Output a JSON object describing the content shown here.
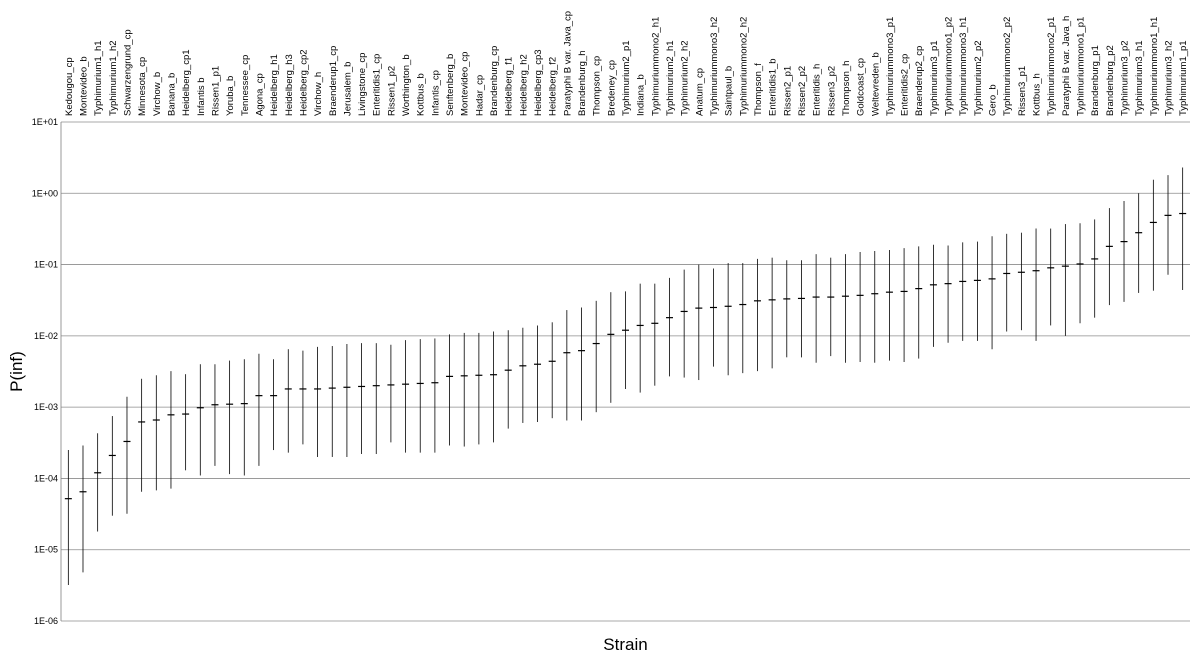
{
  "chart_data": {
    "type": "scatter",
    "xlabel": "Strain",
    "ylabel": "P(inf)",
    "yscale": "log",
    "ylim": [
      1e-06,
      10
    ],
    "yticks": [
      1e-06,
      1e-05,
      0.0001,
      0.001,
      0.01,
      0.1,
      1,
      10
    ],
    "ytick_labels": [
      "1E-06",
      "1E-05",
      "1E-04",
      "1E-03",
      "1E-02",
      "1E-01",
      "1E+00",
      "1E+01"
    ],
    "grid": "horizontal",
    "legend": "none",
    "marker": "horizontal dash with vertical error bar",
    "colors": {
      "line": "#000000",
      "grid": "#8c8c8c",
      "axis": "#808080"
    },
    "points": [
      {
        "strain": "Kedougou_cp",
        "estimate": 5.2e-05,
        "lower": 3.2e-06,
        "upper": 0.00025
      },
      {
        "strain": "Montevideo_b",
        "estimate": 6.5e-05,
        "lower": 4.8e-06,
        "upper": 0.00029
      },
      {
        "strain": "Typhimurium1_h1",
        "estimate": 0.00012,
        "lower": 1.8e-05,
        "upper": 0.00043
      },
      {
        "strain": "Typhimurium1_h2",
        "estimate": 0.00021,
        "lower": 3e-05,
        "upper": 0.00075
      },
      {
        "strain": "Schwarzengrund_cp",
        "estimate": 0.00033,
        "lower": 3.2e-05,
        "upper": 0.0014
      },
      {
        "strain": "Minnesota_cp",
        "estimate": 0.00062,
        "lower": 6.5e-05,
        "upper": 0.0025
      },
      {
        "strain": "Virchow_b",
        "estimate": 0.00066,
        "lower": 6.8e-05,
        "upper": 0.0028
      },
      {
        "strain": "Banana_b",
        "estimate": 0.00078,
        "lower": 7.2e-05,
        "upper": 0.0032
      },
      {
        "strain": "Heidelberg_cp1",
        "estimate": 0.0008,
        "lower": 0.00013,
        "upper": 0.0029
      },
      {
        "strain": "Infantis b",
        "estimate": 0.00098,
        "lower": 0.00011,
        "upper": 0.004
      },
      {
        "strain": "Rissen1_p1",
        "estimate": 0.00108,
        "lower": 0.00015,
        "upper": 0.004
      },
      {
        "strain": "Yoruba_b",
        "estimate": 0.0011,
        "lower": 0.000115,
        "upper": 0.0045
      },
      {
        "strain": "Tennessee_cp",
        "estimate": 0.00112,
        "lower": 0.00011,
        "upper": 0.0047
      },
      {
        "strain": "Agona_cp",
        "estimate": 0.00145,
        "lower": 0.00015,
        "upper": 0.0056
      },
      {
        "strain": "Heidelberg_h1",
        "estimate": 0.00145,
        "lower": 0.00025,
        "upper": 0.0047
      },
      {
        "strain": "Heidelberg_h3",
        "estimate": 0.0018,
        "lower": 0.00023,
        "upper": 0.0065
      },
      {
        "strain": "Heidelberg_cp2",
        "estimate": 0.0018,
        "lower": 0.0003,
        "upper": 0.0062
      },
      {
        "strain": "Virchow_h",
        "estimate": 0.0018,
        "lower": 0.0002,
        "upper": 0.007
      },
      {
        "strain": "Braenderup1_cp",
        "estimate": 0.00185,
        "lower": 0.0002,
        "upper": 0.0072
      },
      {
        "strain": "Jerusalem_b",
        "estimate": 0.0019,
        "lower": 0.0002,
        "upper": 0.0077
      },
      {
        "strain": "Livingstone_cp",
        "estimate": 0.00195,
        "lower": 0.00022,
        "upper": 0.0079
      },
      {
        "strain": "Enteritidis1_cp",
        "estimate": 0.002,
        "lower": 0.00022,
        "upper": 0.0079
      },
      {
        "strain": "Rissen1_p2",
        "estimate": 0.00205,
        "lower": 0.00032,
        "upper": 0.0075
      },
      {
        "strain": "Worthington_b",
        "estimate": 0.0021,
        "lower": 0.00023,
        "upper": 0.0087
      },
      {
        "strain": "Kottbus_b",
        "estimate": 0.00215,
        "lower": 0.00023,
        "upper": 0.009
      },
      {
        "strain": "Infantis_cp",
        "estimate": 0.0022,
        "lower": 0.00023,
        "upper": 0.0092
      },
      {
        "strain": "Senftenberg_b",
        "estimate": 0.0027,
        "lower": 0.00029,
        "upper": 0.0105
      },
      {
        "strain": "Montevideo_cp",
        "estimate": 0.00275,
        "lower": 0.00028,
        "upper": 0.011
      },
      {
        "strain": "Hadar_cp",
        "estimate": 0.0028,
        "lower": 0.0003,
        "upper": 0.011
      },
      {
        "strain": "Brandenburg_cp",
        "estimate": 0.00285,
        "lower": 0.00032,
        "upper": 0.0115
      },
      {
        "strain": "Heidelberg_f1",
        "estimate": 0.0033,
        "lower": 0.0005,
        "upper": 0.012
      },
      {
        "strain": "Heidelberg_h2",
        "estimate": 0.0038,
        "lower": 0.0006,
        "upper": 0.013
      },
      {
        "strain": "Heidelberg_cp3",
        "estimate": 0.004,
        "lower": 0.00062,
        "upper": 0.014
      },
      {
        "strain": "Heidelberg_f2",
        "estimate": 0.0044,
        "lower": 0.0007,
        "upper": 0.0155
      },
      {
        "strain": "Paratyphi B var. Java_cp",
        "estimate": 0.0058,
        "lower": 0.00065,
        "upper": 0.023
      },
      {
        "strain": "Brandenburg_h",
        "estimate": 0.0062,
        "lower": 0.00065,
        "upper": 0.025
      },
      {
        "strain": "Thompson_cp",
        "estimate": 0.0078,
        "lower": 0.00085,
        "upper": 0.031
      },
      {
        "strain": "Bredeney_cp",
        "estimate": 0.0105,
        "lower": 0.00115,
        "upper": 0.041
      },
      {
        "strain": "Typhimurium2_p1",
        "estimate": 0.012,
        "lower": 0.0018,
        "upper": 0.042
      },
      {
        "strain": "Indiana_b",
        "estimate": 0.014,
        "lower": 0.0016,
        "upper": 0.054
      },
      {
        "strain": "Typhimuriummono2_h1",
        "estimate": 0.015,
        "lower": 0.002,
        "upper": 0.054
      },
      {
        "strain": "Typhimurium2_h1",
        "estimate": 0.018,
        "lower": 0.0027,
        "upper": 0.065
      },
      {
        "strain": "Typhimurium2_h2",
        "estimate": 0.022,
        "lower": 0.0026,
        "upper": 0.085
      },
      {
        "strain": "Anatum_cp",
        "estimate": 0.0245,
        "lower": 0.0024,
        "upper": 0.1
      },
      {
        "strain": "Typhimuriummono3_h2",
        "estimate": 0.025,
        "lower": 0.0037,
        "upper": 0.088
      },
      {
        "strain": "Saintpaul_b",
        "estimate": 0.026,
        "lower": 0.0028,
        "upper": 0.105
      },
      {
        "strain": "Typhimuriummono2_h2",
        "estimate": 0.0275,
        "lower": 0.003,
        "upper": 0.105
      },
      {
        "strain": "Thompson_f",
        "estimate": 0.031,
        "lower": 0.0032,
        "upper": 0.12
      },
      {
        "strain": "Enteritidis1_b",
        "estimate": 0.032,
        "lower": 0.0035,
        "upper": 0.125
      },
      {
        "strain": "Rissen2_p1",
        "estimate": 0.033,
        "lower": 0.005,
        "upper": 0.115
      },
      {
        "strain": "Rissen2_p2",
        "estimate": 0.0335,
        "lower": 0.005,
        "upper": 0.115
      },
      {
        "strain": "Enteritidis_h",
        "estimate": 0.035,
        "lower": 0.0042,
        "upper": 0.14
      },
      {
        "strain": "Rissen3_p2",
        "estimate": 0.035,
        "lower": 0.0052,
        "upper": 0.125
      },
      {
        "strain": "Thompson_h",
        "estimate": 0.036,
        "lower": 0.0042,
        "upper": 0.14
      },
      {
        "strain": "Goldcoast_cp",
        "estimate": 0.037,
        "lower": 0.0043,
        "upper": 0.15
      },
      {
        "strain": "Weltevreden_b",
        "estimate": 0.039,
        "lower": 0.0042,
        "upper": 0.155
      },
      {
        "strain": "Typhimuriummono3_p1",
        "estimate": 0.041,
        "lower": 0.0045,
        "upper": 0.16
      },
      {
        "strain": "Enteritidis2_cp",
        "estimate": 0.042,
        "lower": 0.0043,
        "upper": 0.17
      },
      {
        "strain": "Braenderup2_cp",
        "estimate": 0.046,
        "lower": 0.0048,
        "upper": 0.18
      },
      {
        "strain": "Typhimurium3_p1",
        "estimate": 0.052,
        "lower": 0.007,
        "upper": 0.19
      },
      {
        "strain": "Typhimuriummono1_p2",
        "estimate": 0.054,
        "lower": 0.008,
        "upper": 0.185
      },
      {
        "strain": "Typhimuriummono3_h1",
        "estimate": 0.058,
        "lower": 0.0085,
        "upper": 0.205
      },
      {
        "strain": "Typhimurium2_p2",
        "estimate": 0.06,
        "lower": 0.0085,
        "upper": 0.21
      },
      {
        "strain": "Gero_b",
        "estimate": 0.063,
        "lower": 0.0065,
        "upper": 0.25
      },
      {
        "strain": "Typhimuriummono2_p2",
        "estimate": 0.075,
        "lower": 0.0115,
        "upper": 0.27
      },
      {
        "strain": "Rissen3_p1",
        "estimate": 0.078,
        "lower": 0.012,
        "upper": 0.28
      },
      {
        "strain": "Kottbus_h",
        "estimate": 0.082,
        "lower": 0.0085,
        "upper": 0.32
      },
      {
        "strain": "Typhimuriummono2_p1",
        "estimate": 0.09,
        "lower": 0.014,
        "upper": 0.32
      },
      {
        "strain": "Paratyphi B var. Java_h",
        "estimate": 0.095,
        "lower": 0.01,
        "upper": 0.37
      },
      {
        "strain": "Typhimuriummono1_p1",
        "estimate": 0.102,
        "lower": 0.015,
        "upper": 0.38
      },
      {
        "strain": "Brandenburg_p1",
        "estimate": 0.12,
        "lower": 0.018,
        "upper": 0.43
      },
      {
        "strain": "Brandenburg_p2",
        "estimate": 0.18,
        "lower": 0.027,
        "upper": 0.62
      },
      {
        "strain": "Typhimurium3_p2",
        "estimate": 0.21,
        "lower": 0.03,
        "upper": 0.78
      },
      {
        "strain": "Typhimurium3_h1",
        "estimate": 0.28,
        "lower": 0.04,
        "upper": 1.0
      },
      {
        "strain": "Typhimuriummono1_h1",
        "estimate": 0.39,
        "lower": 0.043,
        "upper": 1.55
      },
      {
        "strain": "Typhimurium3_h2",
        "estimate": 0.49,
        "lower": 0.072,
        "upper": 1.8
      },
      {
        "strain": "Typhimurium1_p1",
        "estimate": 0.52,
        "lower": 0.044,
        "upper": 2.3
      }
    ]
  }
}
